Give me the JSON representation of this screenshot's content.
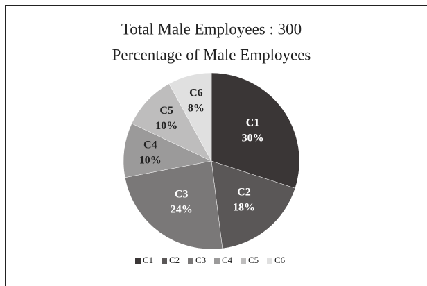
{
  "chart_data": {
    "type": "pie",
    "title": "Total Male Employees : 300",
    "subtitle": "Percentage of Male Employees",
    "categories": [
      "C1",
      "C2",
      "C3",
      "C4",
      "C5",
      "C6"
    ],
    "values": [
      30,
      18,
      24,
      10,
      10,
      8
    ],
    "value_labels": [
      "30%",
      "18%",
      "24%",
      "10%",
      "10%",
      "8%"
    ],
    "colors": [
      "#3a3636",
      "#5a5757",
      "#7a7878",
      "#9b9a9a",
      "#bebdbd",
      "#e0e0e0"
    ],
    "legend": "bottom"
  }
}
